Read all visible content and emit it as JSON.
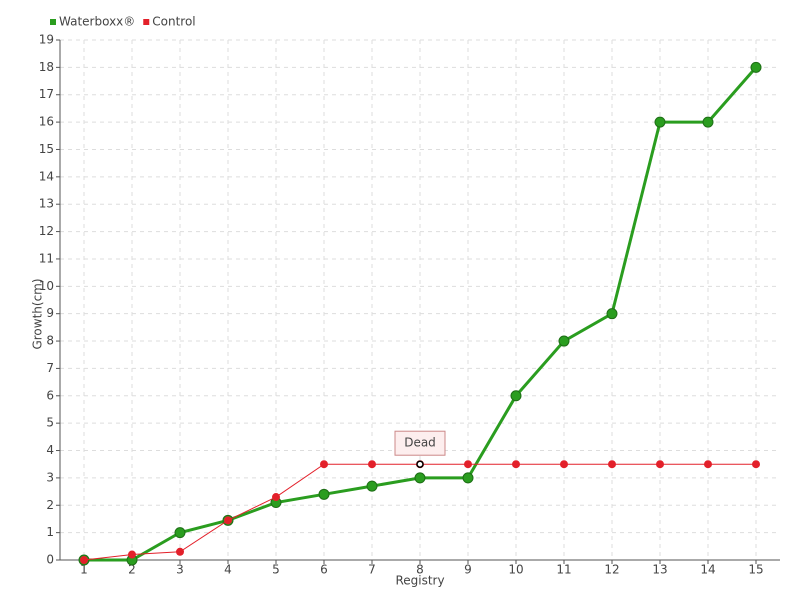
{
  "chart_data": {
    "type": "line",
    "x": [
      1,
      2,
      3,
      4,
      5,
      6,
      7,
      8,
      9,
      10,
      11,
      12,
      13,
      14,
      15
    ],
    "series": [
      {
        "name": "Waterboxx®",
        "color": "#2a9d1f",
        "values": [
          0,
          0,
          1,
          1.45,
          2.1,
          2.4,
          2.7,
          3,
          3,
          6,
          8,
          9,
          16,
          16,
          18
        ]
      },
      {
        "name": "Control",
        "color": "#e3202a",
        "values": [
          0,
          0.2,
          0.3,
          1.45,
          2.3,
          3.5,
          3.5,
          3.5,
          3.5,
          3.5,
          3.5,
          3.5,
          3.5,
          3.5,
          3.5
        ]
      }
    ],
    "xlabel": "Registry",
    "ylabel": "Growth(cm)",
    "xlim": [
      0.5,
      15.5
    ],
    "xticks": [
      1,
      2,
      3,
      4,
      5,
      6,
      7,
      8,
      9,
      10,
      11,
      12,
      13,
      14,
      15
    ],
    "ylim": [
      0,
      19
    ],
    "yticks": [
      0,
      1,
      2,
      3,
      4,
      5,
      6,
      7,
      8,
      9,
      10,
      11,
      12,
      13,
      14,
      15,
      16,
      17,
      18,
      19
    ],
    "grid": true,
    "legend": "top-left",
    "annotations": [
      {
        "label": "Dead",
        "x": 8,
        "y": 3.5
      }
    ]
  }
}
